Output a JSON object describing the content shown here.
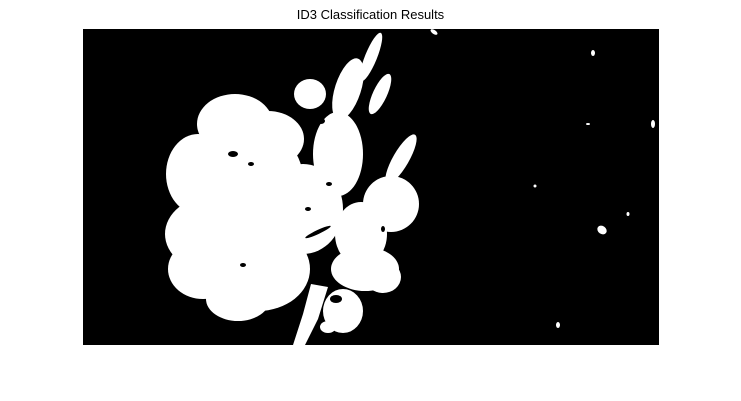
{
  "figure": {
    "title": "ID3 Classification Results",
    "colors": {
      "background": "#ffffff",
      "image_background": "#000000",
      "foreground_mask": "#ffffff"
    }
  },
  "image": {
    "type": "binary-segmentation-mask",
    "foreground": "white plant/flower blob on the left half",
    "background": "black"
  }
}
